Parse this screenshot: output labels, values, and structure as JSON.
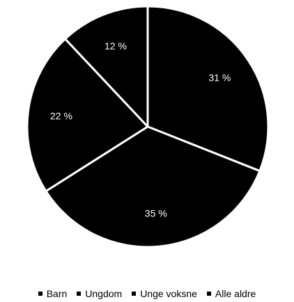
{
  "chart_data": {
    "type": "pie",
    "categories": [
      "Barn",
      "Ungdom",
      "Unge voksne",
      "Alle aldre"
    ],
    "values": [
      31,
      35,
      22,
      12
    ],
    "value_labels": [
      "31 %",
      "35 %",
      "22 %",
      "12 %"
    ],
    "colors": [
      "#000000",
      "#000000",
      "#000000",
      "#000000"
    ],
    "slice_border_color": "#ffffff",
    "label_color": "#ffffff",
    "start": "12 o'clock",
    "direction": "clockwise",
    "legend": "bottom"
  }
}
